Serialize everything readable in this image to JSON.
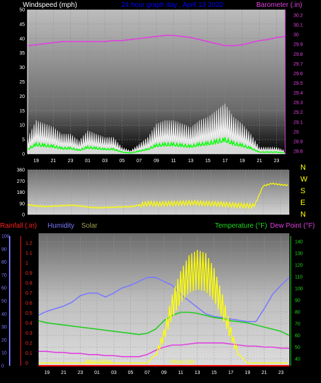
{
  "header": {
    "left": "Windspeed (mph)",
    "center": "24 hour graph day , April 13 2020",
    "right": "Barometer (.in)"
  },
  "colors": {
    "windspeed": "#ffffff",
    "gust": "#00ff00",
    "avg": "#c8f0c8",
    "barometer": "#e040e0",
    "direction": "#ffff00",
    "humidity": "#7a7aff",
    "temperature": "#22cc22",
    "dewpoint": "#e040e0",
    "solar": "#ffff00",
    "rainfall": "#ff0000",
    "moon": "#ffff00",
    "header_text": "#0000ff",
    "panel_top": "#5a5a5a",
    "panel_bottom": "#d8d8d8",
    "grid": "#8a8a8a"
  },
  "x_ticks": [
    "19",
    "21",
    "23",
    "01",
    "03",
    "05",
    "07",
    "09",
    "11",
    "13",
    "15",
    "17",
    "19",
    "21",
    "23"
  ],
  "wind_chart": {
    "ylabel_left": "Windspeed (mph)",
    "ylabel_right": "Barometer (.in)",
    "left_ticks": [
      "50",
      "45",
      "40",
      "35",
      "30",
      "25",
      "20",
      "15",
      "10",
      "5",
      "0"
    ],
    "right_ticks": [
      "30.2",
      "30.1",
      "30",
      "29.9",
      "29.8",
      "29.7",
      "29.6",
      "29.5",
      "29.4",
      "29.3",
      "29.2",
      "29.1",
      "29",
      "28.9",
      "28.8"
    ],
    "ylim_left": [
      0,
      50
    ],
    "ylim_right": [
      28.8,
      30.2
    ]
  },
  "direction_chart": {
    "left_ticks": [
      "360",
      "270",
      "180",
      "90",
      "0"
    ],
    "ylim": [
      0,
      360
    ],
    "direction_labels": [
      "N",
      "W",
      "S",
      "E",
      "N"
    ]
  },
  "lower_chart": {
    "titles": {
      "rainfall": "Rainfall (.in)",
      "humidity": "Humidity",
      "solar": "Solar",
      "temperature": "Temperature (°F)",
      "dewpoint": "Dew Point (°F)"
    },
    "humidity_ticks": [
      "100",
      "90",
      "80",
      "70",
      "60",
      "50",
      "40",
      "30",
      "20",
      "10",
      "0"
    ],
    "rain_ticks": [
      "1.2",
      "1.1",
      "1",
      "0.9",
      "0.8",
      "0.7",
      "0.6",
      "0.5",
      "0.4",
      "0.3",
      "0.2",
      "0.1",
      "0"
    ],
    "temp_ticks": [
      "140",
      "130",
      "120",
      "110",
      "100",
      "90",
      "80",
      "70",
      "60",
      "50",
      "40"
    ],
    "ylim_temperature": [
      30,
      145
    ],
    "ylim_humidity": [
      0,
      100
    ],
    "moon_rise": "Moon Rise",
    "moon_set": "Moon Set"
  },
  "chart_data": [
    {
      "type": "line",
      "title": "",
      "xlabel": "",
      "ylabel": "Windspeed (mph)",
      "x": [
        "18",
        "19",
        "20",
        "21",
        "22",
        "23",
        "00",
        "01",
        "02",
        "03",
        "04",
        "05",
        "06",
        "07",
        "08",
        "09",
        "10",
        "11",
        "12",
        "13",
        "14",
        "15",
        "16",
        "17",
        "18",
        "19",
        "20",
        "21",
        "22",
        "23",
        "24"
      ],
      "ylim": [
        0,
        50
      ],
      "series": [
        {
          "name": "Windspeed (mph)",
          "values": [
            5,
            10,
            9,
            8,
            6,
            6,
            4,
            7,
            6,
            5,
            5,
            2,
            1,
            3,
            5,
            9,
            10,
            10,
            9,
            8,
            10,
            11,
            13,
            15,
            11,
            9,
            6,
            2,
            2,
            2,
            1
          ]
        },
        {
          "name": "Barometer (.in)",
          "axis": "right",
          "values": [
            29.85,
            29.86,
            29.87,
            29.88,
            29.89,
            29.89,
            29.89,
            29.89,
            29.89,
            29.89,
            29.9,
            29.9,
            29.91,
            29.92,
            29.93,
            29.94,
            29.95,
            29.95,
            29.94,
            29.93,
            29.91,
            29.89,
            29.87,
            29.85,
            29.85,
            29.86,
            29.88,
            29.9,
            29.91,
            29.93,
            29.94
          ]
        }
      ],
      "ylim_right": [
        28.8,
        30.2
      ]
    },
    {
      "type": "line",
      "title": "",
      "ylabel": "",
      "x": [
        "18",
        "19",
        "20",
        "21",
        "22",
        "23",
        "00",
        "01",
        "02",
        "03",
        "04",
        "05",
        "06",
        "07",
        "08",
        "09",
        "10",
        "11",
        "12",
        "13",
        "14",
        "15",
        "16",
        "17",
        "18",
        "19",
        "20",
        "21",
        "22",
        "23",
        "24"
      ],
      "ylim": [
        0,
        360
      ],
      "series": [
        {
          "name": "",
          "values": [
            80,
            70,
            65,
            68,
            72,
            75,
            70,
            60,
            55,
            58,
            60,
            62,
            65,
            80,
            90,
            85,
            88,
            90,
            92,
            95,
            90,
            88,
            85,
            80,
            75,
            72,
            70,
            230,
            250,
            240,
            235
          ]
        }
      ]
    },
    {
      "type": "line",
      "title": "",
      "x": [
        "18",
        "19",
        "20",
        "21",
        "22",
        "23",
        "00",
        "01",
        "02",
        "03",
        "04",
        "05",
        "06",
        "07",
        "08",
        "09",
        "10",
        "11",
        "12",
        "13",
        "14",
        "15",
        "16",
        "17",
        "18",
        "19",
        "20",
        "21",
        "22",
        "23",
        "24"
      ],
      "series": [
        {
          "name": "Humidity",
          "axis": "humidity",
          "values": [
            39,
            42,
            44,
            46,
            49,
            54,
            56,
            56,
            53,
            56,
            60,
            62,
            65,
            68,
            68,
            65,
            62,
            55,
            50,
            45,
            40,
            38,
            37,
            36,
            35,
            34,
            34,
            44,
            55,
            62,
            68
          ]
        },
        {
          "name": "Temperature (°F)",
          "axis": "temperature",
          "values": [
            70,
            68,
            67,
            66,
            65,
            64,
            63,
            62,
            61,
            60,
            59,
            58,
            57,
            58,
            62,
            70,
            75,
            78,
            78,
            77,
            75,
            73,
            72,
            70,
            69,
            68,
            66,
            64,
            62,
            60,
            56
          ]
        },
        {
          "name": "Dew Point (°F)",
          "axis": "temperature",
          "values": [
            41,
            41,
            40,
            40,
            39,
            39,
            38,
            38,
            37,
            37,
            36,
            36,
            36,
            38,
            42,
            45,
            47,
            47,
            48,
            49,
            49,
            49,
            49,
            48,
            47,
            46,
            46,
            45,
            45,
            44,
            44
          ]
        },
        {
          "name": "Solar",
          "axis": "temperature",
          "values": [
            30,
            30,
            30,
            30,
            30,
            30,
            30,
            30,
            30,
            30,
            30,
            30,
            30,
            30,
            38,
            62,
            95,
            117,
            132,
            137,
            134,
            120,
            95,
            64,
            38,
            30,
            30,
            30,
            30,
            30,
            30
          ]
        },
        {
          "name": "Rainfall (.in)",
          "axis": "rain",
          "values": [
            0,
            0,
            0,
            0,
            0,
            0,
            0,
            0,
            0,
            0,
            0,
            0,
            0,
            0,
            0,
            0,
            0,
            0,
            0,
            0,
            0,
            0,
            0,
            0,
            0,
            0,
            0,
            0,
            0,
            0,
            0
          ]
        }
      ],
      "ylim_temperature": [
        30,
        145
      ],
      "ylim_humidity": [
        0,
        100
      ],
      "ylim_rain": [
        0,
        1.2
      ]
    }
  ]
}
